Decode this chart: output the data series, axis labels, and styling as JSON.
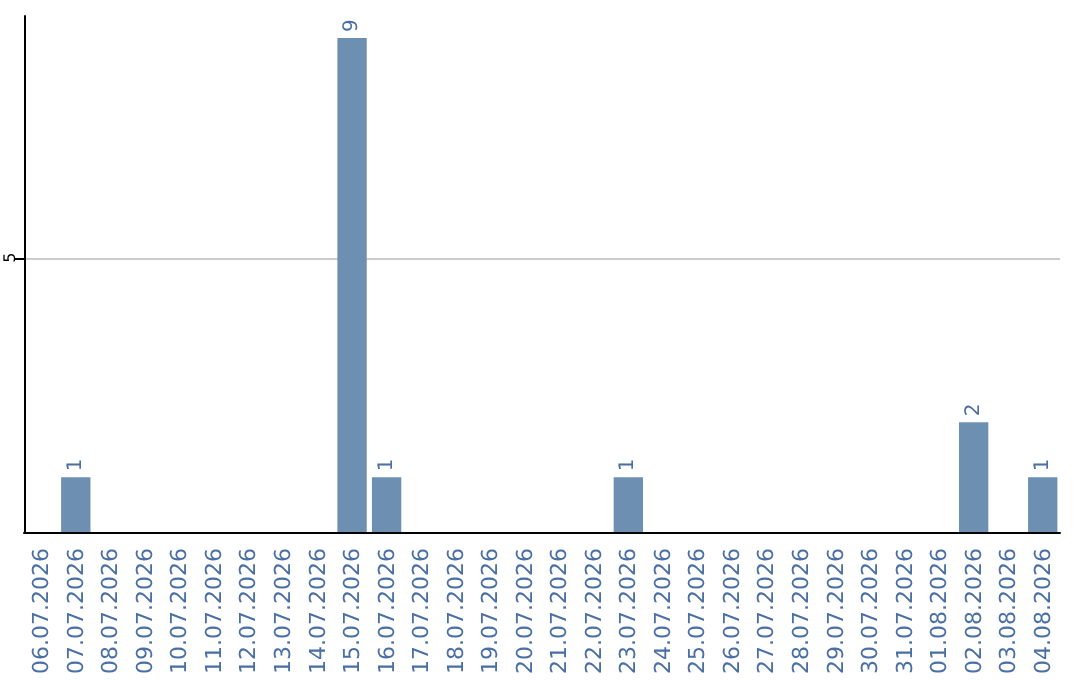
{
  "chart_data": {
    "type": "bar",
    "categories": [
      "06.07.2026",
      "07.07.2026",
      "08.07.2026",
      "09.07.2026",
      "10.07.2026",
      "11.07.2026",
      "12.07.2026",
      "13.07.2026",
      "14.07.2026",
      "15.07.2026",
      "16.07.2026",
      "17.07.2026",
      "18.07.2026",
      "19.07.2026",
      "20.07.2026",
      "21.07.2026",
      "22.07.2026",
      "23.07.2026",
      "24.07.2026",
      "25.07.2026",
      "26.07.2026",
      "27.07.2026",
      "28.07.2026",
      "29.07.2026",
      "30.07.2026",
      "31.07.2026",
      "01.08.2026",
      "02.08.2026",
      "03.08.2026",
      "04.08.2026"
    ],
    "values": [
      0,
      1,
      0,
      0,
      0,
      0,
      0,
      0,
      0,
      9,
      1,
      0,
      0,
      0,
      0,
      0,
      0,
      1,
      0,
      0,
      0,
      0,
      0,
      0,
      0,
      0,
      0,
      2,
      0,
      1
    ],
    "value_labels": [
      null,
      "1",
      null,
      null,
      null,
      null,
      null,
      null,
      null,
      "9",
      "1",
      null,
      null,
      null,
      null,
      null,
      null,
      "1",
      null,
      null,
      null,
      null,
      null,
      null,
      null,
      null,
      null,
      "2",
      null,
      "1"
    ],
    "color": "#6d8fb1",
    "ylim": [
      0,
      9.4
    ],
    "yticks": [
      5
    ],
    "grid": "y"
  }
}
